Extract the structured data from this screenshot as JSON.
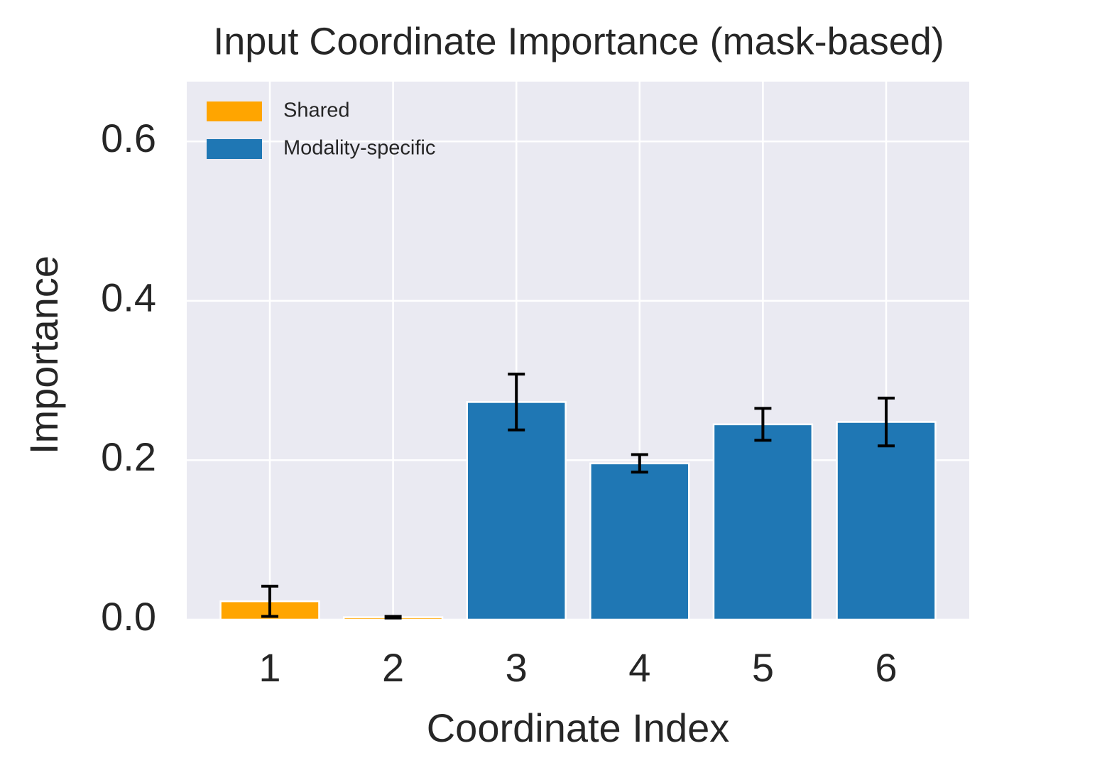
{
  "chart_data": {
    "type": "bar",
    "title": "Input Coordinate Importance (mask-based)",
    "xlabel": "Coordinate Index",
    "ylabel": "Importance",
    "categories": [
      "1",
      "2",
      "3",
      "4",
      "5",
      "6"
    ],
    "series": [
      {
        "name": "Shared",
        "color": "#ffa500",
        "values": [
          0.023,
          0.003,
          null,
          null,
          null,
          null
        ],
        "errors": [
          0.019,
          0.001,
          null,
          null,
          null,
          null
        ]
      },
      {
        "name": "Modality-specific",
        "color": "#1f77b4",
        "values": [
          null,
          null,
          0.273,
          0.196,
          0.245,
          0.248
        ],
        "errors": [
          null,
          null,
          0.035,
          0.011,
          0.02,
          0.03
        ]
      }
    ],
    "ylim": [
      0,
      0.675
    ],
    "yticks": [
      {
        "value": 0,
        "label": "0.0"
      },
      0.2,
      0.4,
      0.6
    ],
    "grid": true,
    "legend": "upper left"
  }
}
